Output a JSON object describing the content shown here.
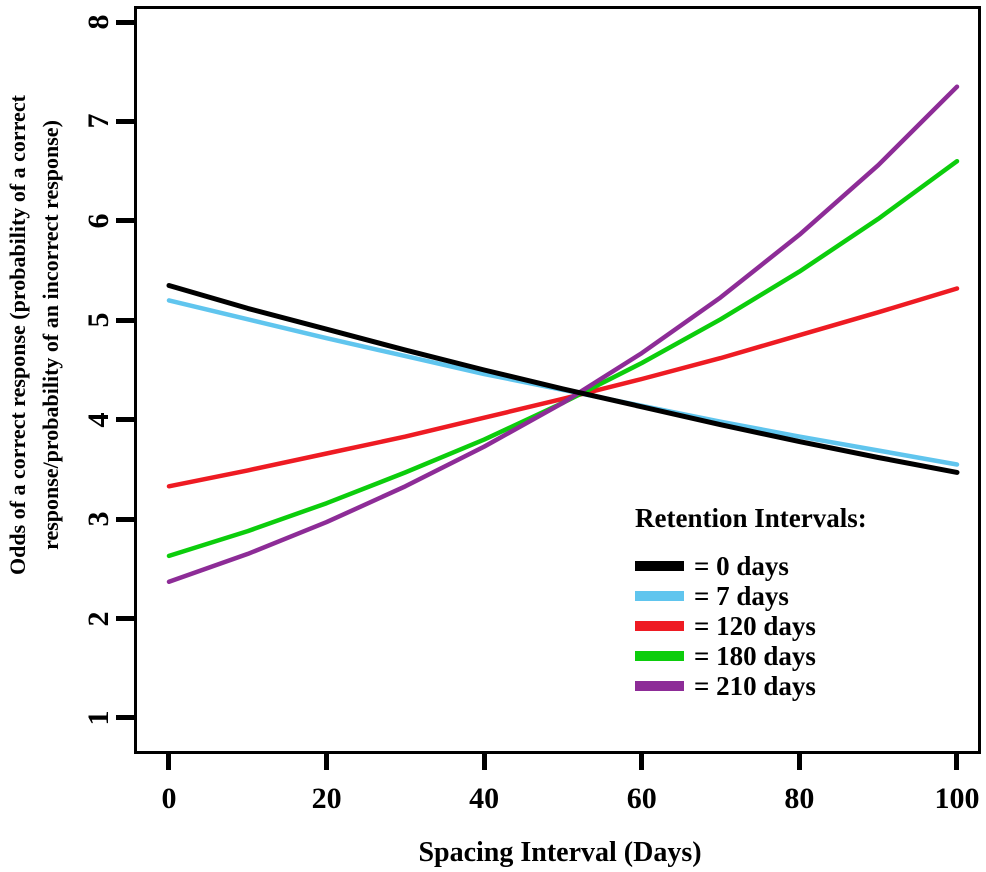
{
  "chart_data": {
    "type": "line",
    "title": "",
    "xlabel": "Spacing Interval (Days)",
    "ylabel": "Odds of a correct response (probability of a correct response/probability of an incorrect response)",
    "ylabel_lines": [
      "Odds of a correct response (probability of a correct",
      "response/probability of an incorrect response)"
    ],
    "xlim": [
      -4.06,
      102.67
    ],
    "ylim": [
      0.668,
      8.131
    ],
    "xticks": [
      "0",
      "20",
      "40",
      "60",
      "80",
      "100"
    ],
    "xtick_values": [
      0,
      20,
      40,
      60,
      80,
      100
    ],
    "yticks": [
      "1",
      "2",
      "3",
      "4",
      "5",
      "6",
      "7",
      "8"
    ],
    "ytick_values": [
      1,
      2,
      3,
      4,
      5,
      6,
      7,
      8
    ],
    "grid": false,
    "frame": "full-box",
    "legend_title": "Retention Intervals:",
    "legend_position": "inside lower-right",
    "x": [
      0,
      10,
      20,
      30,
      40,
      50,
      60,
      70,
      80,
      90,
      100
    ],
    "series": [
      {
        "name": "= 0 days",
        "color": "#000000",
        "values": [
          5.35,
          5.12,
          4.91,
          4.7,
          4.5,
          4.31,
          4.13,
          3.95,
          3.78,
          3.62,
          3.47
        ]
      },
      {
        "name": "= 7 days",
        "color": "#60C5EE",
        "values": [
          5.2,
          5.01,
          4.82,
          4.64,
          4.46,
          4.3,
          4.14,
          3.98,
          3.83,
          3.69,
          3.55
        ]
      },
      {
        "name": "= 120 days",
        "color": "#EE1B23",
        "values": [
          3.33,
          3.49,
          3.66,
          3.83,
          4.02,
          4.21,
          4.41,
          4.62,
          4.85,
          5.08,
          5.32
        ]
      },
      {
        "name": "= 180 days",
        "color": "#0CCD0C",
        "values": [
          2.63,
          2.88,
          3.16,
          3.47,
          3.8,
          4.17,
          4.57,
          5.01,
          5.49,
          6.02,
          6.6
        ]
      },
      {
        "name": "= 210 days",
        "color": "#8D2C97",
        "values": [
          2.37,
          2.65,
          2.97,
          3.33,
          3.73,
          4.17,
          4.67,
          5.23,
          5.86,
          6.56,
          7.35
        ]
      }
    ]
  }
}
